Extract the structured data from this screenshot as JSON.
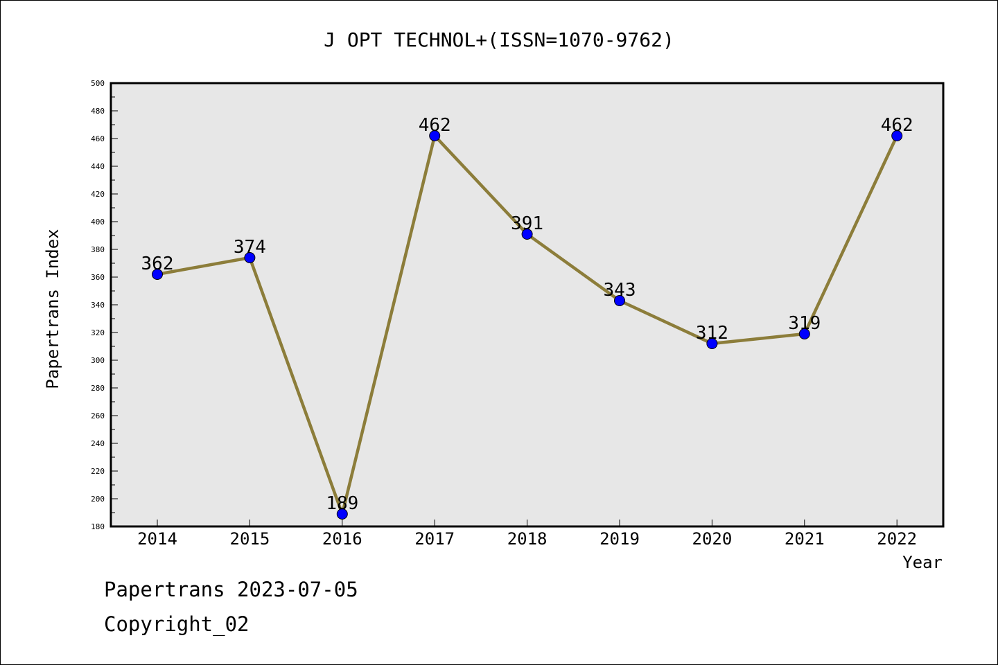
{
  "chart_data": {
    "type": "line",
    "title": "J OPT TECHNOL+(ISSN=1070-9762)",
    "xlabel": "Year",
    "ylabel": "Papertrans Index",
    "categories": [
      "2014",
      "2015",
      "2016",
      "2017",
      "2018",
      "2019",
      "2020",
      "2021",
      "2022"
    ],
    "values": [
      362,
      374,
      189,
      462,
      391,
      343,
      312,
      319,
      462
    ],
    "data_labels": [
      "362",
      "374",
      "189",
      "462",
      "391",
      "343",
      "312",
      "319",
      "462"
    ],
    "ylim": [
      180,
      500
    ],
    "y_ticks": [
      "180",
      "200",
      "220",
      "240",
      "260",
      "280",
      "300",
      "320",
      "340",
      "360",
      "380",
      "400",
      "420",
      "440",
      "460",
      "480",
      "500"
    ],
    "grid": false,
    "colors": {
      "line": "#8c7d3a",
      "marker": "#0000ff",
      "plot_background": "#e7e7e7"
    }
  },
  "footer": {
    "line1": "Papertrans 2023-07-05",
    "line2": "Copyright_02"
  }
}
